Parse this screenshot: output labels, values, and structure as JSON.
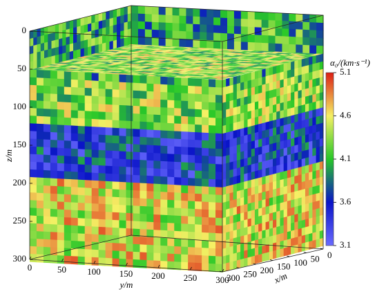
{
  "chart_data": {
    "type": "volume",
    "zlabel": "z/m",
    "ylabel": "y/m",
    "xlabel": "x/m",
    "zlim": [
      0,
      300
    ],
    "zticks": [
      0,
      50,
      100,
      150,
      200,
      250,
      300
    ],
    "ylim": [
      0,
      300
    ],
    "yticks": [
      0,
      50,
      100,
      150,
      200,
      250,
      300
    ],
    "xlim": [
      0,
      300
    ],
    "xticks": [
      0,
      50,
      100,
      150,
      200,
      250,
      300
    ],
    "colorbar": {
      "label": "α₀/(km·s⁻¹)",
      "lim": [
        3.1,
        5.1
      ],
      "ticks": [
        3.1,
        3.6,
        4.1,
        4.6,
        5.1
      ],
      "colors": [
        "#6a6aff",
        "#0a14c8",
        "#28c828",
        "#f5f064",
        "#dc1e14"
      ]
    }
  }
}
